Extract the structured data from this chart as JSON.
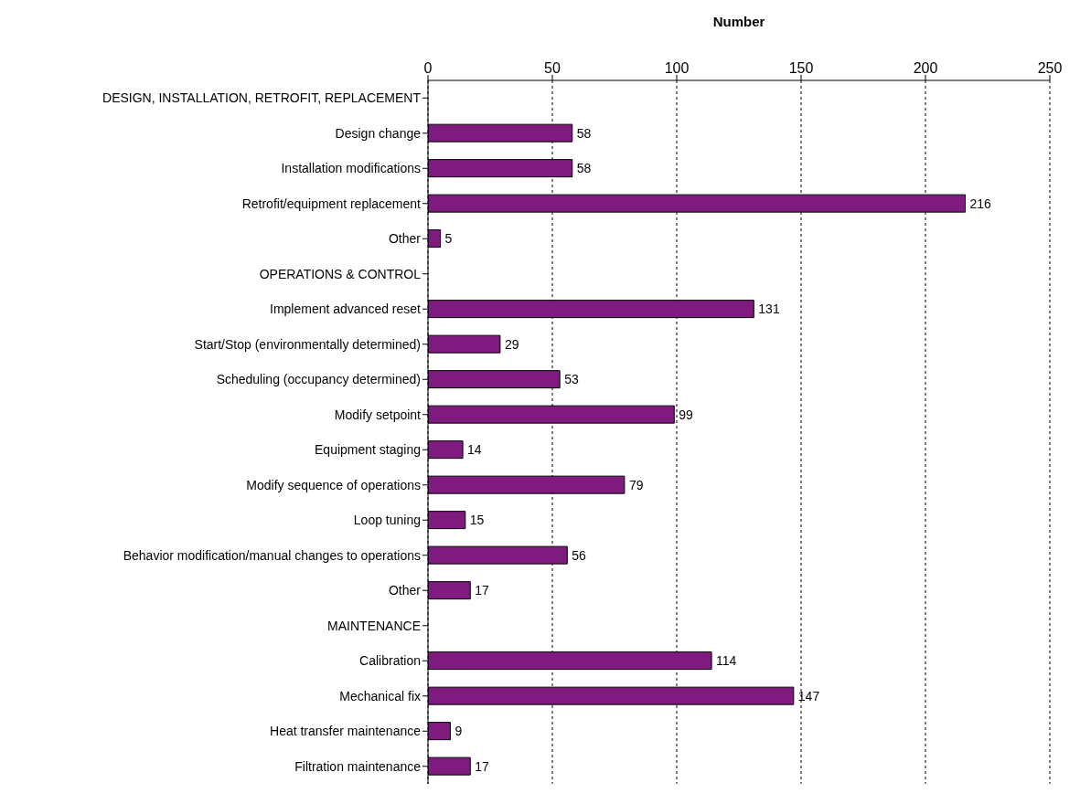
{
  "chart_data": {
    "type": "bar",
    "orientation": "horizontal",
    "xlabel": "Number",
    "categories": [
      "DESIGN, INSTALLATION, RETROFIT, REPLACEMENT",
      "Design change",
      "Installation modifications",
      "Retrofit/equipment replacement",
      "Other",
      "OPERATIONS & CONTROL",
      "Implement advanced reset",
      "Start/Stop (environmentally determined)",
      "Scheduling (occupancy determined)",
      "Modify setpoint",
      "Equipment staging",
      "Modify sequence of operations",
      "Loop tuning",
      "Behavior modification/manual changes to operations",
      "Other",
      "MAINTENANCE",
      "Calibration",
      "Mechanical fix",
      "Heat transfer maintenance",
      "Filtration maintenance"
    ],
    "values": [
      null,
      58,
      58,
      216,
      5,
      null,
      131,
      29,
      53,
      99,
      14,
      79,
      15,
      56,
      17,
      null,
      114,
      147,
      9,
      17
    ],
    "color": "#7f1a7f",
    "xlim": [
      0,
      250
    ],
    "xticks": [
      0,
      50,
      100,
      150,
      200,
      250
    ],
    "grid": "x",
    "data_labels": true,
    "legend": false
  }
}
